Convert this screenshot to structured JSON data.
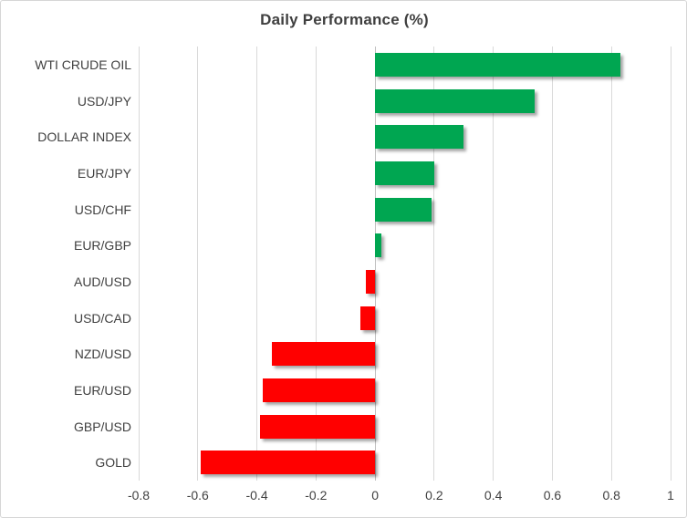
{
  "chart_data": {
    "type": "bar",
    "orientation": "horizontal",
    "title": "Daily Performance (%)",
    "categories": [
      "WTI CRUDE OIL",
      "USD/JPY",
      "DOLLAR INDEX",
      "EUR/JPY",
      "USD/CHF",
      "EUR/GBP",
      "AUD/USD",
      "USD/CAD",
      "NZD/USD",
      "EUR/USD",
      "GBP/USD",
      "GOLD"
    ],
    "values": [
      0.83,
      0.54,
      0.3,
      0.2,
      0.19,
      0.02,
      -0.03,
      -0.05,
      -0.35,
      -0.38,
      -0.39,
      -0.59
    ],
    "xlabel": "",
    "ylabel": "",
    "xlim": [
      -0.8,
      1
    ],
    "xticks": [
      -0.8,
      -0.6,
      -0.4,
      -0.2,
      0,
      0.2,
      0.4,
      0.6,
      0.8,
      1
    ],
    "xtick_labels": [
      "-0.8",
      "-0.6",
      "-0.4",
      "-0.2",
      "0",
      "0.2",
      "0.4",
      "0.6",
      "0.8",
      "1"
    ],
    "grid": true,
    "legend": false
  },
  "style": {
    "positive_bar_color": "#00A651",
    "negative_bar_color": "#FF0000",
    "gridline_color": "#D9D9D9",
    "zero_line_color": "#BFBFBF",
    "text_color": "#404040",
    "frame_border_color": "#D6D6D6",
    "background_color": "#FFFFFF"
  }
}
